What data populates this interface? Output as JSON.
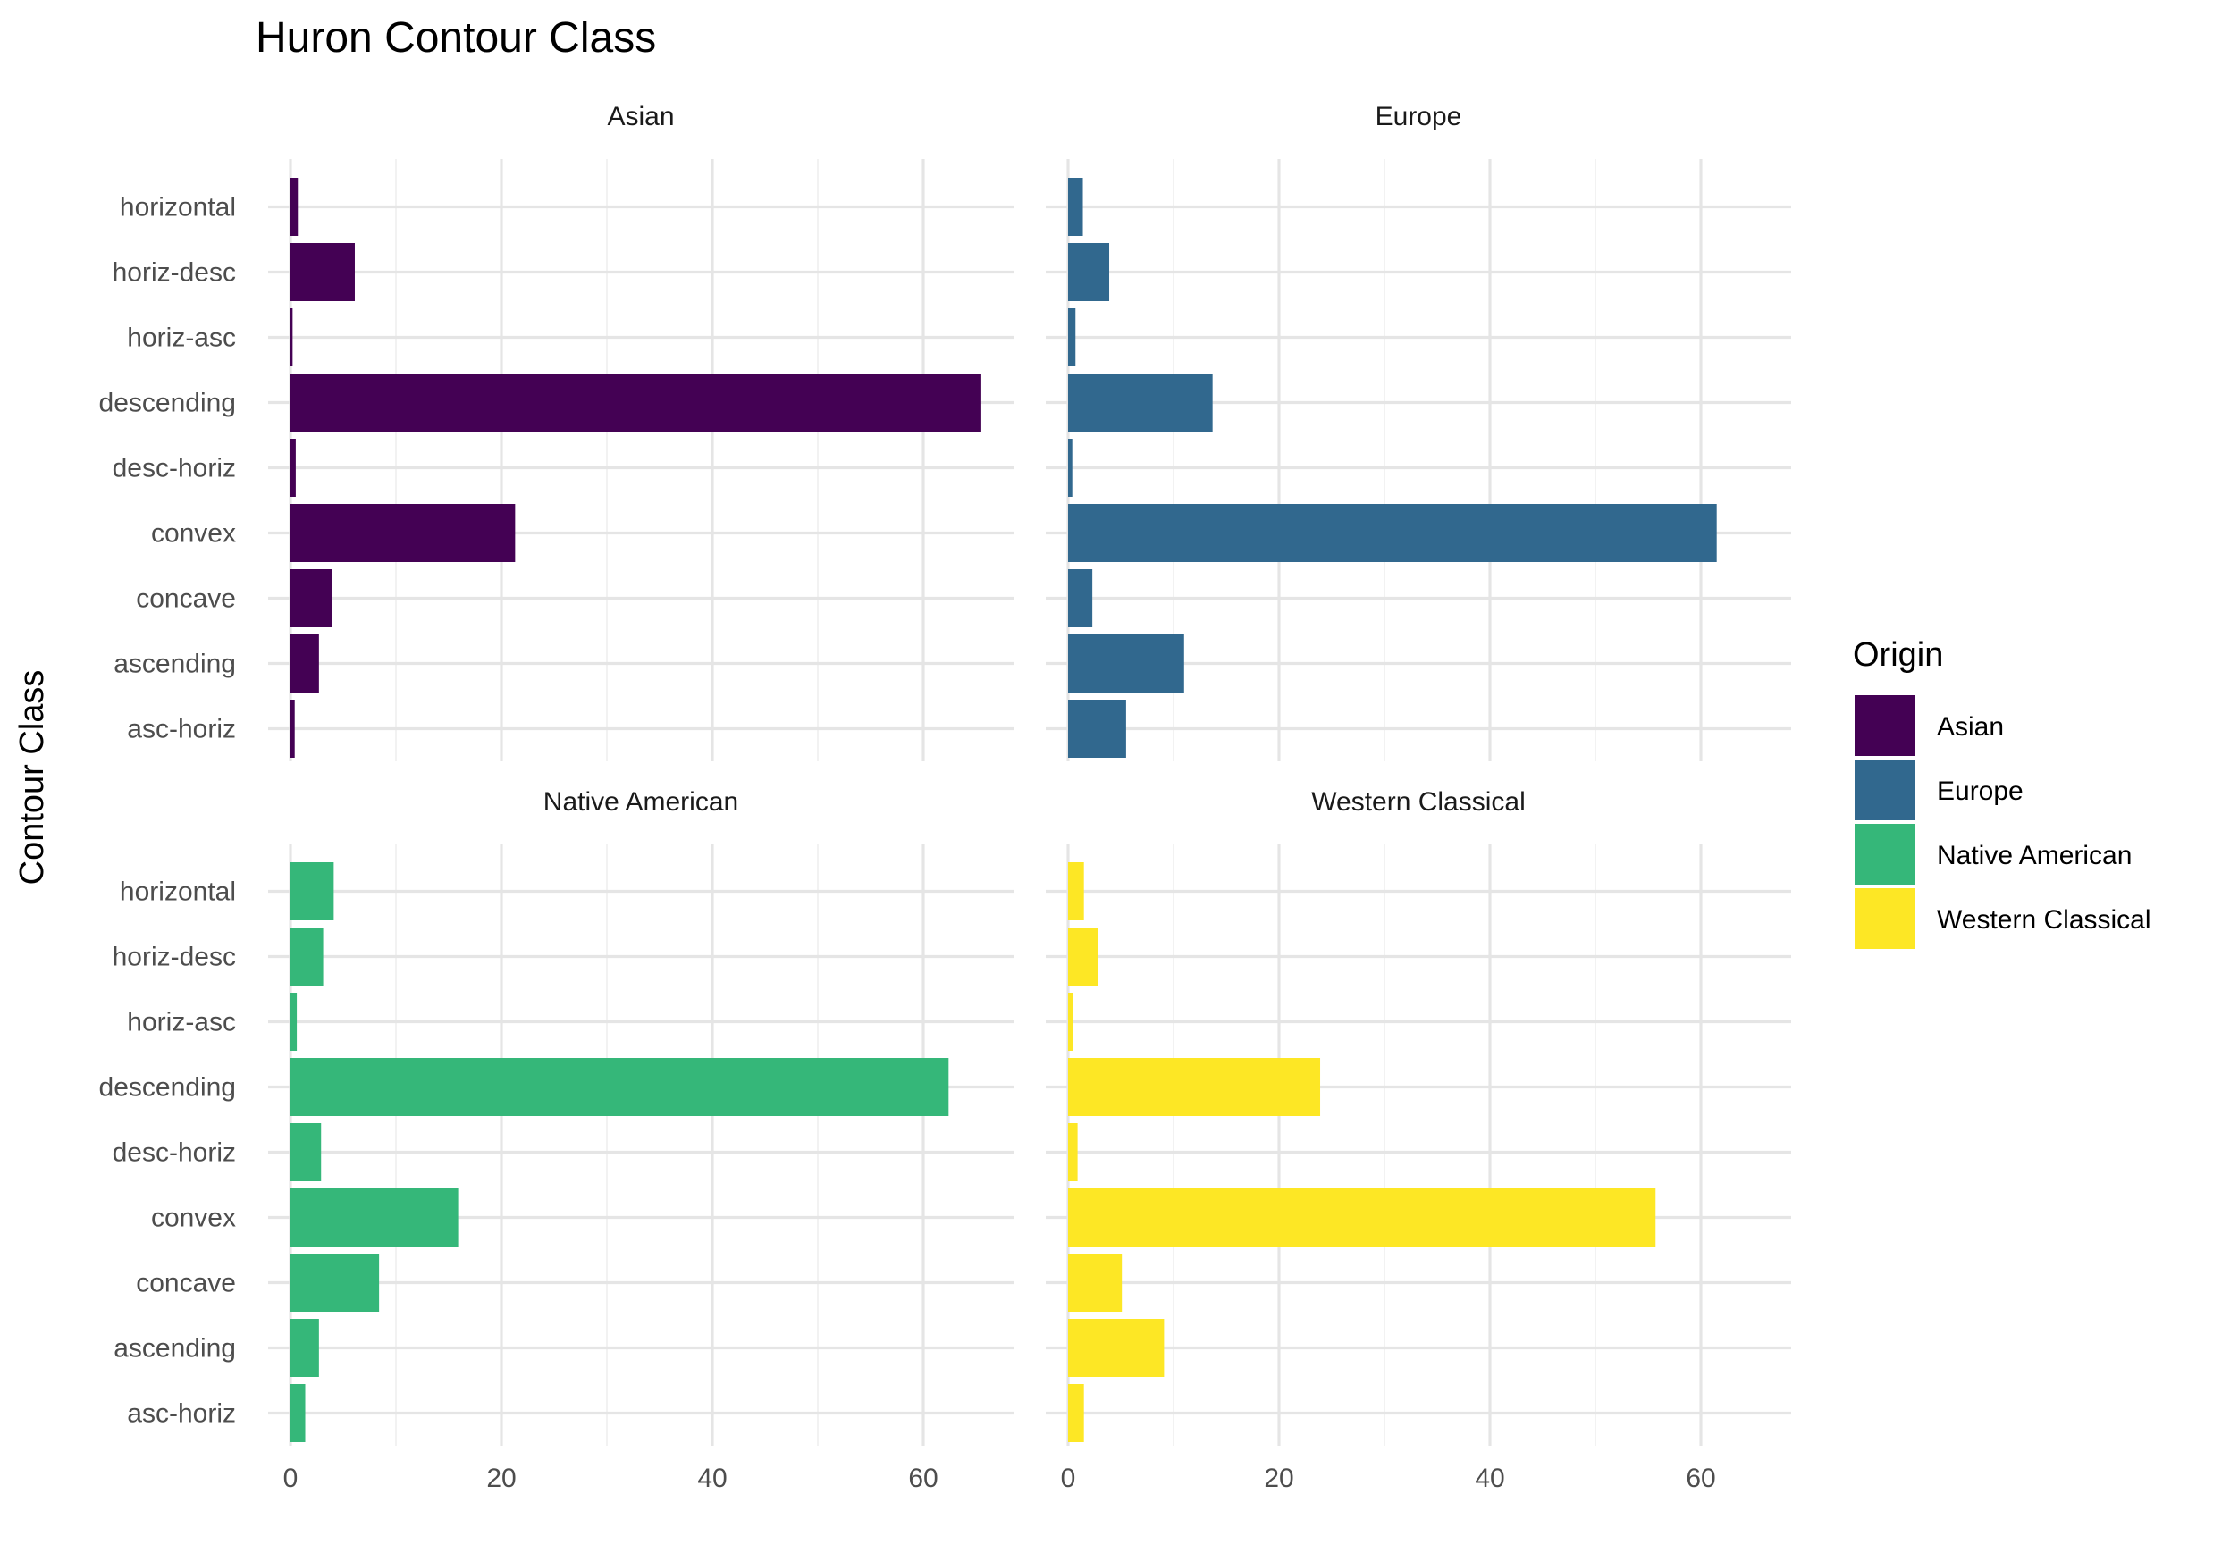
{
  "chart_data": {
    "type": "bar",
    "orientation": "horizontal",
    "title": "Huron Contour Class",
    "ylabel": "Contour Class",
    "xlabel": "",
    "categories": [
      "asc-horiz",
      "ascending",
      "concave",
      "convex",
      "desc-horiz",
      "descending",
      "horiz-asc",
      "horiz-desc",
      "horizontal"
    ],
    "xlim": [
      0,
      68
    ],
    "x_ticks": [
      0,
      20,
      40,
      60
    ],
    "grid": true,
    "legend": {
      "title": "Origin",
      "position": "right"
    },
    "facets": [
      {
        "name": "Asian",
        "color": "#440154",
        "values": [
          0.4,
          2.7,
          3.9,
          21.3,
          0.5,
          65.5,
          0.2,
          6.1,
          0.7
        ]
      },
      {
        "name": "Europe",
        "color": "#31688E",
        "values": [
          5.5,
          11.0,
          2.3,
          61.5,
          0.4,
          13.7,
          0.7,
          3.9,
          1.4
        ]
      },
      {
        "name": "Native American",
        "color": "#35B779",
        "values": [
          1.4,
          2.7,
          8.4,
          15.9,
          2.9,
          62.4,
          0.6,
          3.1,
          4.1
        ]
      },
      {
        "name": "Western Classical",
        "color": "#FDE725",
        "values": [
          1.5,
          9.1,
          5.1,
          55.7,
          0.9,
          23.9,
          0.5,
          2.8,
          1.5
        ]
      }
    ]
  }
}
